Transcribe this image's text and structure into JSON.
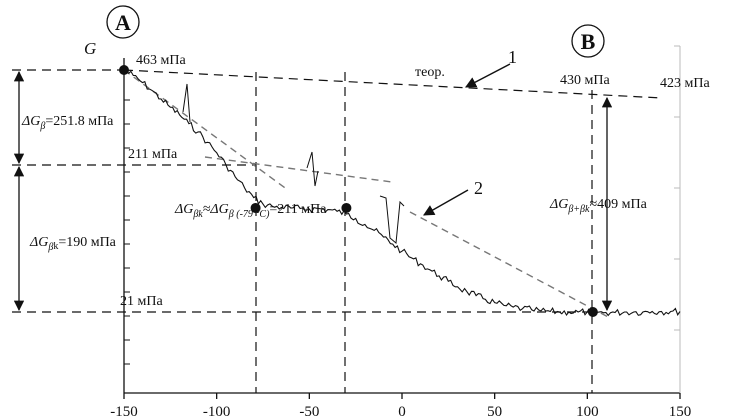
{
  "chart_data": {
    "type": "line",
    "xlabel": "",
    "ylabel": "G",
    "xlim": [
      -150,
      150
    ],
    "xticks": [
      "-150",
      "-100",
      "-50",
      "0",
      "50",
      "100",
      "150"
    ],
    "x_tick_values": [
      -150,
      -100,
      -50,
      0,
      50,
      100,
      150
    ],
    "grid": false,
    "series": [
      {
        "name": "2",
        "kind": "experimental",
        "x": [
          -150,
          -145,
          -140,
          -135,
          -130,
          -125,
          -120,
          -115,
          -110,
          -105,
          -100,
          -95,
          -90,
          -85,
          -80,
          -75,
          -70,
          -65,
          -60,
          -55,
          -50,
          -45,
          -40,
          -35,
          -30,
          -25,
          -20,
          -15,
          -10,
          -5,
          0,
          5,
          10,
          15,
          20,
          25,
          30,
          35,
          40,
          45,
          50,
          55,
          60,
          65,
          70,
          75,
          80,
          85,
          90,
          95,
          100,
          103,
          105,
          110,
          115,
          120,
          125,
          130,
          135,
          140,
          145,
          150
        ],
        "y": [
          463,
          453,
          440,
          426,
          410,
          395,
          381,
          365,
          350,
          331,
          312,
          290,
          268,
          248,
          230,
          218,
          214,
          212,
          211,
          210,
          209,
          210,
          208,
          205,
          200,
          192,
          181,
          170,
          158,
          145,
          132,
          120,
          109,
          98,
          87,
          77,
          67,
          58,
          51,
          44,
          38,
          33,
          30,
          27,
          25,
          23,
          22,
          21,
          21,
          21,
          21,
          21,
          20,
          20,
          20,
          21,
          21,
          21,
          22,
          22,
          22,
          22
        ]
      },
      {
        "name": "1",
        "kind": "theoretical",
        "label": "теор.",
        "x": [
          -150,
          103,
          150
        ],
        "y": [
          463,
          430,
          423
        ]
      }
    ],
    "points": [
      {
        "x": -150,
        "y": 463
      },
      {
        "x": -79,
        "y": 211
      },
      {
        "x": -30,
        "y": 211
      },
      {
        "x": 103,
        "y": 21
      }
    ]
  },
  "labels": {
    "circle_a": "A",
    "circle_b": "B",
    "y_axis_symbol": "G",
    "val_463": "463 мПа",
    "val_211": "211 мПа",
    "val_21": "21 мПа",
    "val_430": "430 мПа",
    "val_423": "423 мПа",
    "theor": "теор.",
    "curve_1": "1",
    "curve_2": "2",
    "delta_beta_main": "ΔG",
    "delta_beta_sub": "β",
    "delta_beta_value": "=251.8 мПа",
    "delta_betak_main": "ΔG",
    "delta_betak_sub": "β",
    "delta_betak_subk": "k",
    "delta_betak_value": "=190 мПа",
    "mid_lhs_main": "ΔG",
    "mid_lhs_sub": "βk",
    "mid_approx": "≈ΔG",
    "mid_rhs_sub": "β (-79 °C)",
    "mid_value": "=211 мПа",
    "right_main": "ΔG",
    "right_sub": "β+βk",
    "right_value": "≈409 мПа"
  },
  "colors": {
    "ink": "#111111",
    "secondary_axis": "#bbbbbb",
    "fit_line": "#777777"
  }
}
